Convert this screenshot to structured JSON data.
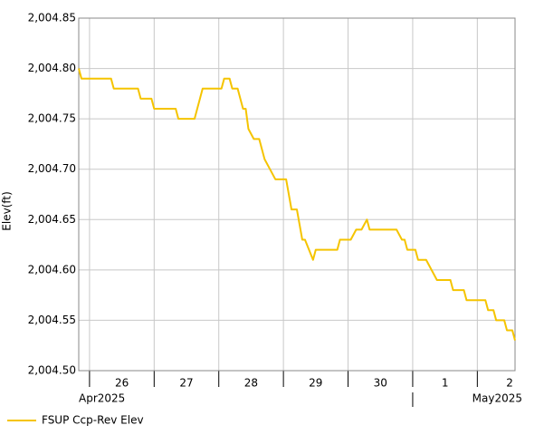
{
  "chart_data": {
    "type": "line",
    "y_label": "Elev(ft)",
    "xlim": [
      "2025-04-25T20:00",
      "2025-05-02T14:00"
    ],
    "xticks": [
      {
        "value": "2025-04-26",
        "label": "26"
      },
      {
        "value": "2025-04-27",
        "label": "27"
      },
      {
        "value": "2025-04-28",
        "label": "28"
      },
      {
        "value": "2025-04-29",
        "label": "29"
      },
      {
        "value": "2025-04-30",
        "label": "30"
      },
      {
        "value": "2025-05-01",
        "label": "1"
      },
      {
        "value": "2025-05-02",
        "label": "2"
      }
    ],
    "month_ticks": [
      {
        "value": "2025-04",
        "label": "Apr2025"
      },
      {
        "value": "2025-05",
        "label": "May2025"
      }
    ],
    "ylim": [
      2004.5,
      2004.85
    ],
    "yticks": [
      {
        "value": 2004.5,
        "label": "2,004.50"
      },
      {
        "value": 2004.55,
        "label": "2,004.55"
      },
      {
        "value": 2004.6,
        "label": "2,004.60"
      },
      {
        "value": 2004.65,
        "label": "2,004.65"
      },
      {
        "value": 2004.7,
        "label": "2,004.70"
      },
      {
        "value": 2004.75,
        "label": "2,004.75"
      },
      {
        "value": 2004.8,
        "label": "2,004.80"
      },
      {
        "value": 2004.85,
        "label": "2,004.85"
      }
    ],
    "grid": true,
    "legend": "bottom-left",
    "x": [
      "2025-04-25T20:00",
      "2025-04-25T21:00",
      "2025-04-26T08:00",
      "2025-04-26T09:00",
      "2025-04-26T18:00",
      "2025-04-26T19:00",
      "2025-04-26T23:00",
      "2025-04-27T00:00",
      "2025-04-27T08:00",
      "2025-04-27T09:00",
      "2025-04-27T15:00",
      "2025-04-27T16:00",
      "2025-04-27T17:00",
      "2025-04-27T18:00",
      "2025-04-28T01:00",
      "2025-04-28T02:00",
      "2025-04-28T04:00",
      "2025-04-28T05:00",
      "2025-04-28T07:00",
      "2025-04-28T09:00",
      "2025-04-28T10:00",
      "2025-04-28T11:00",
      "2025-04-28T13:00",
      "2025-04-28T15:00",
      "2025-04-28T17:00",
      "2025-04-28T19:00",
      "2025-04-28T21:00",
      "2025-04-29T01:00",
      "2025-04-29T03:00",
      "2025-04-29T05:00",
      "2025-04-29T07:00",
      "2025-04-29T08:00",
      "2025-04-29T11:00",
      "2025-04-29T12:00",
      "2025-04-29T20:00",
      "2025-04-29T21:00",
      "2025-04-30T01:00",
      "2025-04-30T03:00",
      "2025-04-30T05:00",
      "2025-04-30T07:00",
      "2025-04-30T08:00",
      "2025-04-30T18:00",
      "2025-04-30T20:00",
      "2025-04-30T21:00",
      "2025-04-30T22:00",
      "2025-05-01T01:00",
      "2025-05-01T02:00",
      "2025-05-01T05:00",
      "2025-05-01T07:00",
      "2025-05-01T09:00",
      "2025-05-01T14:00",
      "2025-05-01T15:00",
      "2025-05-01T19:00",
      "2025-05-01T20:00",
      "2025-05-02T03:00",
      "2025-05-02T04:00",
      "2025-05-02T06:00",
      "2025-05-02T07:00",
      "2025-05-02T10:00",
      "2025-05-02T11:00",
      "2025-05-02T13:00",
      "2025-05-02T14:00"
    ],
    "series": [
      {
        "name": "FSUP Ccp-Rev Elev",
        "color": "#f5c400",
        "values": [
          2004.8,
          2004.79,
          2004.79,
          2004.78,
          2004.78,
          2004.77,
          2004.77,
          2004.76,
          2004.76,
          2004.75,
          2004.75,
          2004.76,
          2004.77,
          2004.78,
          2004.78,
          2004.79,
          2004.79,
          2004.78,
          2004.78,
          2004.76,
          2004.76,
          2004.74,
          2004.73,
          2004.73,
          2004.71,
          2004.7,
          2004.69,
          2004.69,
          2004.66,
          2004.66,
          2004.63,
          2004.63,
          2004.61,
          2004.62,
          2004.62,
          2004.63,
          2004.63,
          2004.64,
          2004.64,
          2004.65,
          2004.64,
          2004.64,
          2004.63,
          2004.63,
          2004.62,
          2004.62,
          2004.61,
          2004.61,
          2004.6,
          2004.59,
          2004.59,
          2004.58,
          2004.58,
          2004.57,
          2004.57,
          2004.56,
          2004.56,
          2004.55,
          2004.55,
          2004.54,
          2004.54,
          2004.53
        ]
      }
    ]
  }
}
